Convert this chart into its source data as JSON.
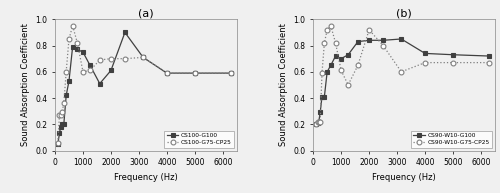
{
  "panel_a": {
    "title": "(a)",
    "series1": {
      "label": "CS100-G100",
      "x": [
        100,
        160,
        200,
        250,
        315,
        400,
        500,
        630,
        800,
        1000,
        1250,
        1600,
        2000,
        2500,
        3150,
        4000,
        5000,
        6300
      ],
      "y": [
        0.05,
        0.13,
        0.18,
        0.2,
        0.2,
        0.42,
        0.53,
        0.79,
        0.77,
        0.75,
        0.65,
        0.51,
        0.61,
        0.9,
        0.71,
        0.59,
        0.59,
        0.59
      ],
      "marker": "s",
      "linestyle": "-",
      "color": "#404040",
      "markersize": 3.5,
      "markerfacecolor": "#404040"
    },
    "series2": {
      "label": "CS100-G75-CP25",
      "x": [
        100,
        160,
        200,
        250,
        315,
        400,
        500,
        630,
        800,
        1000,
        1250,
        1600,
        2000,
        2500,
        3150,
        4000,
        5000,
        6300
      ],
      "y": [
        0.06,
        0.27,
        0.27,
        0.29,
        0.36,
        0.6,
        0.85,
        0.95,
        0.82,
        0.6,
        0.61,
        0.69,
        0.7,
        0.7,
        0.71,
        0.59,
        0.59,
        0.59
      ],
      "marker": "o",
      "linestyle": ":",
      "color": "#808080",
      "markersize": 3.5,
      "markerfacecolor": "#ffffff"
    },
    "xlabel": "Frequency (Hz)",
    "ylabel": "Sound Absorption Coefficient",
    "xlim": [
      0,
      6500
    ],
    "ylim": [
      0.0,
      1.0
    ],
    "xticks": [
      0,
      1000,
      2000,
      3000,
      4000,
      5000,
      6000
    ],
    "yticks": [
      0.0,
      0.2,
      0.4,
      0.6,
      0.8,
      1.0
    ]
  },
  "panel_b": {
    "title": "(b)",
    "series1": {
      "label": "CS90-W10-G100",
      "x": [
        100,
        160,
        200,
        250,
        315,
        400,
        500,
        630,
        800,
        1000,
        1250,
        1600,
        2000,
        2500,
        3150,
        4000,
        5000,
        6300
      ],
      "y": [
        0.2,
        0.21,
        0.22,
        0.29,
        0.41,
        0.41,
        0.6,
        0.65,
        0.72,
        0.7,
        0.73,
        0.83,
        0.84,
        0.84,
        0.85,
        0.74,
        0.73,
        0.72
      ],
      "marker": "s",
      "linestyle": "-",
      "color": "#404040",
      "markersize": 3.5,
      "markerfacecolor": "#404040"
    },
    "series2": {
      "label": "CS90-W10-G75-CP25",
      "x": [
        100,
        160,
        200,
        250,
        315,
        400,
        500,
        630,
        800,
        1000,
        1250,
        1600,
        2000,
        2500,
        3150,
        4000,
        5000,
        6300
      ],
      "y": [
        0.2,
        0.22,
        0.22,
        0.22,
        0.59,
        0.82,
        0.92,
        0.95,
        0.82,
        0.61,
        0.5,
        0.65,
        0.92,
        0.8,
        0.6,
        0.67,
        0.67,
        0.67
      ],
      "marker": "o",
      "linestyle": ":",
      "color": "#808080",
      "markersize": 3.5,
      "markerfacecolor": "#ffffff"
    },
    "xlabel": "Frequency (Hz)",
    "ylabel": "Sound Absorption Coefficient",
    "xlim": [
      0,
      6500
    ],
    "ylim": [
      0.0,
      1.0
    ],
    "xticks": [
      0,
      1000,
      2000,
      3000,
      4000,
      5000,
      6000
    ],
    "yticks": [
      0.0,
      0.2,
      0.4,
      0.6,
      0.8,
      1.0
    ]
  },
  "figsize": [
    5.0,
    1.93
  ],
  "dpi": 100,
  "background_color": "#f0f0f0"
}
